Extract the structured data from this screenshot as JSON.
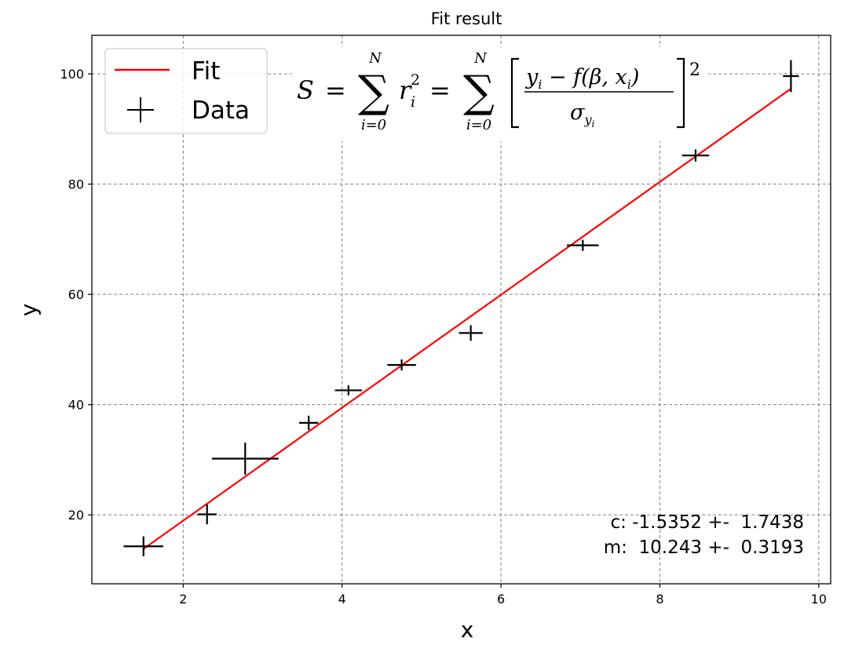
{
  "chart_data": {
    "type": "scatter",
    "title": "Fit result",
    "xlabel": "x",
    "ylabel": "y",
    "xlim": [
      0.85,
      10.15
    ],
    "ylim": [
      7.5,
      107
    ],
    "xticks": [
      2,
      4,
      6,
      8,
      10
    ],
    "yticks": [
      20,
      40,
      60,
      80,
      100
    ],
    "grid": true,
    "legend_placement": "top-left",
    "series": [
      {
        "name": "Fit",
        "kind": "line",
        "color": "#ff0000",
        "x": [
          1.5,
          9.65
        ],
        "y": [
          13.83,
          97.31
        ]
      },
      {
        "name": "Data",
        "kind": "errorbar",
        "color": "#000000",
        "points": [
          {
            "x": 1.5,
            "y": 14.3,
            "xerr": 0.25,
            "yerr": 1.8
          },
          {
            "x": 2.3,
            "y": 20.1,
            "xerr": 0.12,
            "yerr": 1.8
          },
          {
            "x": 2.78,
            "y": 30.2,
            "xerr": 0.42,
            "yerr": 2.9
          },
          {
            "x": 3.58,
            "y": 36.7,
            "xerr": 0.12,
            "yerr": 1.3
          },
          {
            "x": 4.08,
            "y": 42.6,
            "xerr": 0.17,
            "yerr": 0.9
          },
          {
            "x": 4.75,
            "y": 47.2,
            "xerr": 0.18,
            "yerr": 1.0
          },
          {
            "x": 5.62,
            "y": 53.0,
            "xerr": 0.15,
            "yerr": 1.4
          },
          {
            "x": 7.03,
            "y": 68.9,
            "xerr": 0.2,
            "yerr": 1.0
          },
          {
            "x": 8.45,
            "y": 85.2,
            "xerr": 0.17,
            "yerr": 1.1
          },
          {
            "x": 9.65,
            "y": 99.6,
            "xerr": 0.1,
            "yerr": 2.9
          }
        ]
      }
    ],
    "equation": {
      "lhs": "S",
      "eq1": "=",
      "sum_top": "N",
      "sum_bottom": "i=0",
      "residual": "r",
      "residual_sub": "i",
      "residual_sup": "2",
      "eq2": "=",
      "numerator": "y",
      "numerator_sub": "i",
      "numerator_rest": " − f(β, x",
      "numerator_rest_sub": "i",
      "numerator_close": ")",
      "denominator": "σ",
      "denominator_sub": "y",
      "denominator_subsub": "i",
      "power": "2"
    },
    "annotations": {
      "c_line": "c: -1.5352 +-  1.7438",
      "m_line": "m:  10.243 +-  0.3193"
    }
  }
}
